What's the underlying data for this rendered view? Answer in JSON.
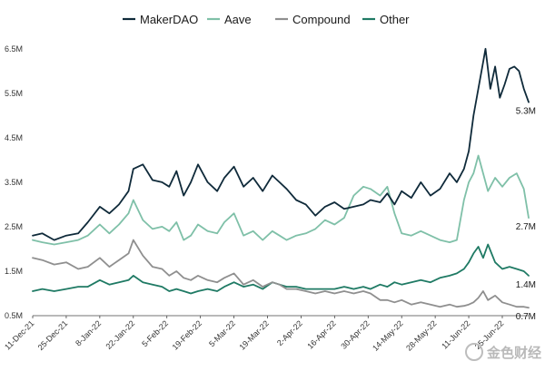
{
  "chart_data": {
    "type": "line",
    "title": "",
    "xlabel": "",
    "ylabel": "",
    "ylim": [
      500000,
      6700000
    ],
    "yticks": [
      {
        "value": 6500000,
        "label": "6.5M"
      },
      {
        "value": 5500000,
        "label": "5.5M"
      },
      {
        "value": 4500000,
        "label": "4.5M"
      },
      {
        "value": 3500000,
        "label": "3.5M"
      },
      {
        "value": 2500000,
        "label": "2.5M"
      },
      {
        "value": 1500000,
        "label": "1.5M"
      },
      {
        "value": 500000,
        "label": "0.5M"
      }
    ],
    "xlim": [
      "2021-12-11",
      "2022-07-06"
    ],
    "xticks": [
      "11-Dec-21",
      "25-Dec-21",
      "8-Jan-22",
      "22-Jan-22",
      "5-Feb-22",
      "19-Feb-22",
      "5-Mar-22",
      "19-Mar-22",
      "2-Apr-22",
      "16-Apr-22",
      "30-Apr-22",
      "14-May-22",
      "28-May-22",
      "11-Jun-22",
      "25-Jun-22"
    ],
    "legend_position": "top-center",
    "grid": false,
    "series": [
      {
        "name": "MakerDAO",
        "color": "#0f2a3a",
        "end_label": "5.3M",
        "points": [
          [
            "2021-12-11",
            2.3
          ],
          [
            "2021-12-15",
            2.35
          ],
          [
            "2021-12-20",
            2.2
          ],
          [
            "2021-12-25",
            2.3
          ],
          [
            "2021-12-30",
            2.35
          ],
          [
            "2022-01-03",
            2.6
          ],
          [
            "2022-01-08",
            2.95
          ],
          [
            "2022-01-12",
            2.8
          ],
          [
            "2022-01-16",
            3.0
          ],
          [
            "2022-01-20",
            3.3
          ],
          [
            "2022-01-22",
            3.8
          ],
          [
            "2022-01-26",
            3.9
          ],
          [
            "2022-01-30",
            3.55
          ],
          [
            "2022-02-03",
            3.5
          ],
          [
            "2022-02-06",
            3.4
          ],
          [
            "2022-02-09",
            3.75
          ],
          [
            "2022-02-12",
            3.2
          ],
          [
            "2022-02-15",
            3.5
          ],
          [
            "2022-02-18",
            3.9
          ],
          [
            "2022-02-22",
            3.5
          ],
          [
            "2022-02-26",
            3.3
          ],
          [
            "2022-03-01",
            3.6
          ],
          [
            "2022-03-05",
            3.85
          ],
          [
            "2022-03-09",
            3.4
          ],
          [
            "2022-03-13",
            3.6
          ],
          [
            "2022-03-17",
            3.3
          ],
          [
            "2022-03-21",
            3.65
          ],
          [
            "2022-03-24",
            3.5
          ],
          [
            "2022-03-27",
            3.35
          ],
          [
            "2022-03-31",
            3.1
          ],
          [
            "2022-04-04",
            3.0
          ],
          [
            "2022-04-08",
            2.75
          ],
          [
            "2022-04-12",
            2.95
          ],
          [
            "2022-04-16",
            3.05
          ],
          [
            "2022-04-20",
            2.9
          ],
          [
            "2022-04-24",
            2.95
          ],
          [
            "2022-04-28",
            3.0
          ],
          [
            "2022-05-01",
            3.1
          ],
          [
            "2022-05-05",
            3.05
          ],
          [
            "2022-05-08",
            3.25
          ],
          [
            "2022-05-11",
            3.0
          ],
          [
            "2022-05-14",
            3.3
          ],
          [
            "2022-05-18",
            3.15
          ],
          [
            "2022-05-22",
            3.5
          ],
          [
            "2022-05-26",
            3.2
          ],
          [
            "2022-05-30",
            3.35
          ],
          [
            "2022-06-03",
            3.7
          ],
          [
            "2022-06-06",
            3.5
          ],
          [
            "2022-06-09",
            3.8
          ],
          [
            "2022-06-11",
            4.2
          ],
          [
            "2022-06-13",
            5.0
          ],
          [
            "2022-06-15",
            5.6
          ],
          [
            "2022-06-17",
            6.2
          ],
          [
            "2022-06-18",
            6.5
          ],
          [
            "2022-06-20",
            5.6
          ],
          [
            "2022-06-22",
            6.1
          ],
          [
            "2022-06-24",
            5.4
          ],
          [
            "2022-06-26",
            5.7
          ],
          [
            "2022-06-28",
            6.05
          ],
          [
            "2022-06-30",
            6.1
          ],
          [
            "2022-07-02",
            6.0
          ],
          [
            "2022-07-04",
            5.6
          ],
          [
            "2022-07-06",
            5.3
          ]
        ]
      },
      {
        "name": "Aave",
        "color": "#7fc0a8",
        "end_label": "2.7M",
        "points": [
          [
            "2021-12-11",
            2.2
          ],
          [
            "2021-12-15",
            2.15
          ],
          [
            "2021-12-20",
            2.1
          ],
          [
            "2021-12-25",
            2.15
          ],
          [
            "2021-12-30",
            2.2
          ],
          [
            "2022-01-03",
            2.3
          ],
          [
            "2022-01-08",
            2.55
          ],
          [
            "2022-01-12",
            2.35
          ],
          [
            "2022-01-16",
            2.55
          ],
          [
            "2022-01-20",
            2.8
          ],
          [
            "2022-01-22",
            3.1
          ],
          [
            "2022-01-26",
            2.65
          ],
          [
            "2022-01-30",
            2.45
          ],
          [
            "2022-02-03",
            2.5
          ],
          [
            "2022-02-06",
            2.4
          ],
          [
            "2022-02-09",
            2.6
          ],
          [
            "2022-02-12",
            2.2
          ],
          [
            "2022-02-15",
            2.3
          ],
          [
            "2022-02-18",
            2.55
          ],
          [
            "2022-02-22",
            2.4
          ],
          [
            "2022-02-26",
            2.35
          ],
          [
            "2022-03-01",
            2.6
          ],
          [
            "2022-03-05",
            2.8
          ],
          [
            "2022-03-09",
            2.3
          ],
          [
            "2022-03-13",
            2.4
          ],
          [
            "2022-03-17",
            2.2
          ],
          [
            "2022-03-21",
            2.4
          ],
          [
            "2022-03-24",
            2.3
          ],
          [
            "2022-03-27",
            2.2
          ],
          [
            "2022-03-31",
            2.3
          ],
          [
            "2022-04-04",
            2.35
          ],
          [
            "2022-04-08",
            2.45
          ],
          [
            "2022-04-12",
            2.65
          ],
          [
            "2022-04-16",
            2.55
          ],
          [
            "2022-04-20",
            2.7
          ],
          [
            "2022-04-24",
            3.2
          ],
          [
            "2022-04-28",
            3.4
          ],
          [
            "2022-05-01",
            3.35
          ],
          [
            "2022-05-05",
            3.2
          ],
          [
            "2022-05-08",
            3.4
          ],
          [
            "2022-05-11",
            2.8
          ],
          [
            "2022-05-14",
            2.35
          ],
          [
            "2022-05-18",
            2.3
          ],
          [
            "2022-05-22",
            2.4
          ],
          [
            "2022-05-26",
            2.3
          ],
          [
            "2022-05-30",
            2.2
          ],
          [
            "2022-06-03",
            2.15
          ],
          [
            "2022-06-06",
            2.2
          ],
          [
            "2022-06-09",
            3.1
          ],
          [
            "2022-06-11",
            3.5
          ],
          [
            "2022-06-13",
            3.7
          ],
          [
            "2022-06-15",
            4.1
          ],
          [
            "2022-06-17",
            3.7
          ],
          [
            "2022-06-19",
            3.3
          ],
          [
            "2022-06-22",
            3.6
          ],
          [
            "2022-06-25",
            3.4
          ],
          [
            "2022-06-28",
            3.6
          ],
          [
            "2022-07-01",
            3.7
          ],
          [
            "2022-07-04",
            3.35
          ],
          [
            "2022-07-06",
            2.7
          ]
        ]
      },
      {
        "name": "Compound",
        "color": "#8f8f8f",
        "end_label": "0.7M",
        "points": [
          [
            "2021-12-11",
            1.8
          ],
          [
            "2021-12-15",
            1.75
          ],
          [
            "2021-12-20",
            1.65
          ],
          [
            "2021-12-25",
            1.7
          ],
          [
            "2021-12-30",
            1.55
          ],
          [
            "2022-01-03",
            1.6
          ],
          [
            "2022-01-08",
            1.8
          ],
          [
            "2022-01-12",
            1.6
          ],
          [
            "2022-01-16",
            1.75
          ],
          [
            "2022-01-20",
            1.9
          ],
          [
            "2022-01-22",
            2.2
          ],
          [
            "2022-01-26",
            1.85
          ],
          [
            "2022-01-30",
            1.6
          ],
          [
            "2022-02-03",
            1.55
          ],
          [
            "2022-02-06",
            1.4
          ],
          [
            "2022-02-09",
            1.5
          ],
          [
            "2022-02-12",
            1.35
          ],
          [
            "2022-02-15",
            1.3
          ],
          [
            "2022-02-18",
            1.4
          ],
          [
            "2022-02-22",
            1.3
          ],
          [
            "2022-02-26",
            1.25
          ],
          [
            "2022-03-01",
            1.35
          ],
          [
            "2022-03-05",
            1.45
          ],
          [
            "2022-03-09",
            1.2
          ],
          [
            "2022-03-13",
            1.3
          ],
          [
            "2022-03-17",
            1.15
          ],
          [
            "2022-03-21",
            1.25
          ],
          [
            "2022-03-24",
            1.2
          ],
          [
            "2022-03-27",
            1.1
          ],
          [
            "2022-03-31",
            1.1
          ],
          [
            "2022-04-04",
            1.05
          ],
          [
            "2022-04-08",
            1.0
          ],
          [
            "2022-04-12",
            1.05
          ],
          [
            "2022-04-16",
            1.0
          ],
          [
            "2022-04-20",
            1.05
          ],
          [
            "2022-04-24",
            1.0
          ],
          [
            "2022-04-28",
            1.05
          ],
          [
            "2022-05-01",
            1.0
          ],
          [
            "2022-05-05",
            0.85
          ],
          [
            "2022-05-08",
            0.85
          ],
          [
            "2022-05-11",
            0.8
          ],
          [
            "2022-05-14",
            0.85
          ],
          [
            "2022-05-18",
            0.75
          ],
          [
            "2022-05-22",
            0.8
          ],
          [
            "2022-05-26",
            0.75
          ],
          [
            "2022-05-30",
            0.7
          ],
          [
            "2022-06-03",
            0.75
          ],
          [
            "2022-06-06",
            0.7
          ],
          [
            "2022-06-09",
            0.72
          ],
          [
            "2022-06-11",
            0.75
          ],
          [
            "2022-06-13",
            0.8
          ],
          [
            "2022-06-15",
            0.9
          ],
          [
            "2022-06-17",
            1.05
          ],
          [
            "2022-06-19",
            0.85
          ],
          [
            "2022-06-22",
            0.95
          ],
          [
            "2022-06-25",
            0.8
          ],
          [
            "2022-06-28",
            0.75
          ],
          [
            "2022-07-01",
            0.7
          ],
          [
            "2022-07-04",
            0.7
          ],
          [
            "2022-07-06",
            0.68
          ]
        ]
      },
      {
        "name": "Other",
        "color": "#1f7a64",
        "end_label": "1.4M",
        "points": [
          [
            "2021-12-11",
            1.05
          ],
          [
            "2021-12-15",
            1.1
          ],
          [
            "2021-12-20",
            1.05
          ],
          [
            "2021-12-25",
            1.1
          ],
          [
            "2021-12-30",
            1.15
          ],
          [
            "2022-01-03",
            1.15
          ],
          [
            "2022-01-08",
            1.3
          ],
          [
            "2022-01-12",
            1.2
          ],
          [
            "2022-01-16",
            1.25
          ],
          [
            "2022-01-20",
            1.3
          ],
          [
            "2022-01-22",
            1.4
          ],
          [
            "2022-01-26",
            1.25
          ],
          [
            "2022-01-30",
            1.2
          ],
          [
            "2022-02-03",
            1.15
          ],
          [
            "2022-02-06",
            1.05
          ],
          [
            "2022-02-09",
            1.1
          ],
          [
            "2022-02-12",
            1.05
          ],
          [
            "2022-02-15",
            1.0
          ],
          [
            "2022-02-18",
            1.05
          ],
          [
            "2022-02-22",
            1.1
          ],
          [
            "2022-02-26",
            1.05
          ],
          [
            "2022-03-01",
            1.15
          ],
          [
            "2022-03-05",
            1.25
          ],
          [
            "2022-03-09",
            1.15
          ],
          [
            "2022-03-13",
            1.2
          ],
          [
            "2022-03-17",
            1.1
          ],
          [
            "2022-03-21",
            1.25
          ],
          [
            "2022-03-24",
            1.2
          ],
          [
            "2022-03-27",
            1.15
          ],
          [
            "2022-03-31",
            1.15
          ],
          [
            "2022-04-04",
            1.1
          ],
          [
            "2022-04-08",
            1.1
          ],
          [
            "2022-04-12",
            1.1
          ],
          [
            "2022-04-16",
            1.1
          ],
          [
            "2022-04-20",
            1.15
          ],
          [
            "2022-04-24",
            1.1
          ],
          [
            "2022-04-28",
            1.15
          ],
          [
            "2022-05-01",
            1.1
          ],
          [
            "2022-05-05",
            1.2
          ],
          [
            "2022-05-08",
            1.15
          ],
          [
            "2022-05-11",
            1.25
          ],
          [
            "2022-05-14",
            1.2
          ],
          [
            "2022-05-18",
            1.25
          ],
          [
            "2022-05-22",
            1.3
          ],
          [
            "2022-05-26",
            1.25
          ],
          [
            "2022-05-30",
            1.35
          ],
          [
            "2022-06-03",
            1.4
          ],
          [
            "2022-06-06",
            1.45
          ],
          [
            "2022-06-09",
            1.55
          ],
          [
            "2022-06-11",
            1.7
          ],
          [
            "2022-06-13",
            1.9
          ],
          [
            "2022-06-15",
            2.05
          ],
          [
            "2022-06-17",
            1.8
          ],
          [
            "2022-06-19",
            2.1
          ],
          [
            "2022-06-22",
            1.7
          ],
          [
            "2022-06-25",
            1.55
          ],
          [
            "2022-06-28",
            1.6
          ],
          [
            "2022-07-01",
            1.55
          ],
          [
            "2022-07-04",
            1.5
          ],
          [
            "2022-07-06",
            1.4
          ]
        ]
      }
    ]
  },
  "watermark_text": "金色财经"
}
